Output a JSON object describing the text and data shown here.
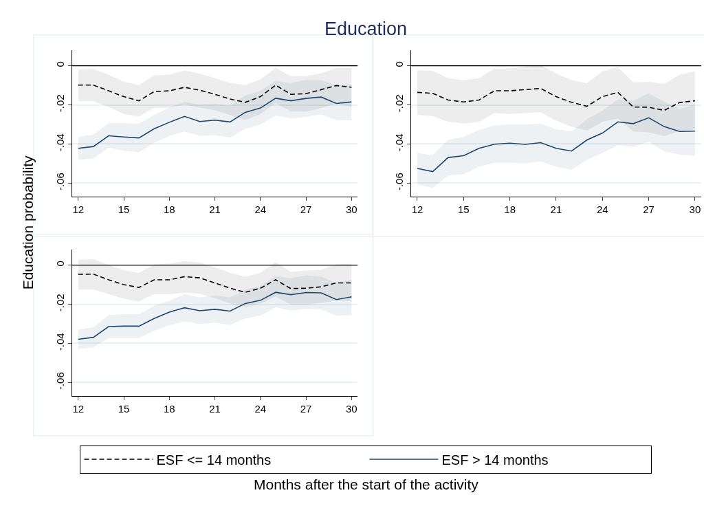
{
  "chart_data": [
    {
      "type": "line",
      "title": "Education",
      "ylabel": "Education probability",
      "xlabel": "Months after the start of the activity",
      "legend": "bottom",
      "grid": "y",
      "x": [
        12,
        13,
        14,
        15,
        16,
        17,
        18,
        19,
        20,
        21,
        22,
        23,
        24,
        25,
        26,
        27,
        28,
        29,
        30
      ],
      "xlim": [
        11.6,
        30.4
      ],
      "xticks": [
        12,
        15,
        18,
        21,
        24,
        27,
        30
      ],
      "ylim": [
        -0.067,
        0.008
      ],
      "yticks": [
        {
          "value": 0,
          "label": "0"
        },
        {
          "value": -0.02,
          "label": "-.02"
        },
        {
          "value": -0.04,
          "label": "-.04"
        },
        {
          "value": -0.06,
          "label": "-.06"
        }
      ],
      "ref_lines": [
        {
          "axis": "y",
          "value": 0,
          "color": "#000000"
        }
      ],
      "series": [
        {
          "name": "ESF <= 14 months",
          "color": "#000000",
          "line_style": "dashed",
          "values": [
            -0.0099,
            -0.0099,
            -0.0128,
            -0.0158,
            -0.0179,
            -0.0132,
            -0.0128,
            -0.011,
            -0.0125,
            -0.0146,
            -0.017,
            -0.0187,
            -0.0158,
            -0.0099,
            -0.0146,
            -0.0143,
            -0.0122,
            -0.0101,
            -0.011
          ],
          "upper": [
            -0.0019,
            -0.0016,
            -0.0046,
            -0.0081,
            -0.0099,
            -0.0049,
            -0.0046,
            -0.0024,
            -0.004,
            -0.0064,
            -0.0087,
            -0.0099,
            -0.0069,
            -0.0011,
            -0.0054,
            -0.0052,
            -0.0038,
            -0.0011,
            -0.0012
          ],
          "lower": [
            -0.0181,
            -0.0181,
            -0.021,
            -0.0246,
            -0.0259,
            -0.0216,
            -0.0214,
            -0.0199,
            -0.0214,
            -0.0228,
            -0.0252,
            -0.0278,
            -0.0246,
            -0.0191,
            -0.0234,
            -0.0234,
            -0.0216,
            -0.0195,
            -0.021
          ]
        },
        {
          "name": "ESF > 14 months",
          "color": "#1a476f",
          "line_style": "solid",
          "values": [
            -0.0422,
            -0.0413,
            -0.0358,
            -0.0364,
            -0.0369,
            -0.0322,
            -0.0289,
            -0.0259,
            -0.0285,
            -0.0278,
            -0.0287,
            -0.0238,
            -0.0216,
            -0.0166,
            -0.0179,
            -0.0167,
            -0.016,
            -0.0193,
            -0.0185
          ],
          "upper": [
            -0.0364,
            -0.0352,
            -0.0293,
            -0.0293,
            -0.0296,
            -0.0252,
            -0.0214,
            -0.0184,
            -0.0199,
            -0.0195,
            -0.0205,
            -0.0152,
            -0.0128,
            -0.0078,
            -0.0087,
            -0.0073,
            -0.0073,
            -0.0099,
            -0.0093
          ],
          "lower": [
            -0.0481,
            -0.0473,
            -0.0419,
            -0.0434,
            -0.0442,
            -0.0393,
            -0.036,
            -0.0336,
            -0.0358,
            -0.0355,
            -0.0367,
            -0.0322,
            -0.0301,
            -0.0254,
            -0.0269,
            -0.0261,
            -0.0249,
            -0.0278,
            -0.0278
          ]
        }
      ]
    },
    {
      "type": "line",
      "grid": "y",
      "x": [
        12,
        13,
        14,
        15,
        16,
        17,
        18,
        19,
        20,
        21,
        22,
        23,
        24,
        25,
        26,
        27,
        28,
        29,
        30
      ],
      "xlim": [
        11.6,
        30.4
      ],
      "xticks": [
        12,
        15,
        18,
        21,
        24,
        27,
        30
      ],
      "ylim": [
        -0.067,
        0.008
      ],
      "yticks": [
        {
          "value": 0,
          "label": "0"
        },
        {
          "value": -0.02,
          "label": "-.02"
        },
        {
          "value": -0.04,
          "label": "-.04"
        },
        {
          "value": -0.06,
          "label": "-.06"
        }
      ],
      "ref_lines": [
        {
          "axis": "y",
          "value": 0,
          "color": "#000000"
        }
      ],
      "series": [
        {
          "color": "#000000",
          "line_style": "dashed",
          "values": [
            -0.0136,
            -0.0141,
            -0.0175,
            -0.0185,
            -0.0175,
            -0.0128,
            -0.0128,
            -0.0122,
            -0.0116,
            -0.0158,
            -0.0187,
            -0.0207,
            -0.0158,
            -0.0136,
            -0.0211,
            -0.0212,
            -0.0228,
            -0.0188,
            -0.0179
          ],
          "upper": [
            -0.0022,
            -0.0026,
            -0.0064,
            -0.0073,
            -0.0064,
            -0.0014,
            -0.0014,
            -0.0005,
            0.0005,
            -0.004,
            -0.0073,
            -0.0089,
            -0.0028,
            -0.0007,
            -0.0085,
            -0.0082,
            -0.0093,
            -0.0046,
            -0.0028
          ],
          "lower": [
            -0.0252,
            -0.0258,
            -0.0287,
            -0.0296,
            -0.0287,
            -0.0242,
            -0.0246,
            -0.0242,
            -0.0238,
            -0.0281,
            -0.0311,
            -0.0332,
            -0.0287,
            -0.0269,
            -0.0336,
            -0.034,
            -0.036,
            -0.0334,
            -0.0328
          ]
        },
        {
          "color": "#1a476f",
          "line_style": "solid",
          "values": [
            -0.0525,
            -0.0541,
            -0.0469,
            -0.046,
            -0.0422,
            -0.0401,
            -0.0396,
            -0.0402,
            -0.0393,
            -0.0422,
            -0.0436,
            -0.0379,
            -0.0344,
            -0.0287,
            -0.0296,
            -0.0266,
            -0.0311,
            -0.0336,
            -0.0334
          ],
          "upper": [
            -0.0445,
            -0.0458,
            -0.0379,
            -0.0364,
            -0.0328,
            -0.0305,
            -0.0299,
            -0.0301,
            -0.0296,
            -0.0325,
            -0.0336,
            -0.0273,
            -0.0231,
            -0.0172,
            -0.0179,
            -0.0141,
            -0.0184,
            -0.0222,
            -0.0199
          ],
          "lower": [
            -0.0607,
            -0.0624,
            -0.0561,
            -0.0555,
            -0.0516,
            -0.0496,
            -0.0495,
            -0.0499,
            -0.0489,
            -0.0516,
            -0.0532,
            -0.0481,
            -0.0446,
            -0.0405,
            -0.0414,
            -0.0389,
            -0.0438,
            -0.0454,
            -0.0461
          ]
        }
      ]
    },
    {
      "type": "line",
      "grid": "y",
      "x": [
        12,
        13,
        14,
        15,
        16,
        17,
        18,
        19,
        20,
        21,
        22,
        23,
        24,
        25,
        26,
        27,
        28,
        29,
        30
      ],
      "xlim": [
        11.6,
        30.4
      ],
      "xticks": [
        12,
        15,
        18,
        21,
        24,
        27,
        30
      ],
      "ylim": [
        -0.067,
        0.008
      ],
      "yticks": [
        {
          "value": 0,
          "label": "0"
        },
        {
          "value": -0.02,
          "label": "-.02"
        },
        {
          "value": -0.04,
          "label": "-.04"
        },
        {
          "value": -0.06,
          "label": "-.06"
        }
      ],
      "ref_lines": [
        {
          "axis": "y",
          "value": 0,
          "color": "#000000"
        }
      ],
      "series": [
        {
          "color": "#000000",
          "line_style": "dashed",
          "values": [
            -0.0047,
            -0.0046,
            -0.0075,
            -0.01,
            -0.0114,
            -0.0075,
            -0.0075,
            -0.0059,
            -0.0065,
            -0.0091,
            -0.0118,
            -0.0139,
            -0.0118,
            -0.0075,
            -0.012,
            -0.0118,
            -0.0111,
            -0.0091,
            -0.0091
          ],
          "upper": [
            0.0027,
            0.0031,
            0,
            -0.0026,
            -0.004,
            0.0004,
            0.0007,
            0.0021,
            0.0013,
            -0.0012,
            -0.0038,
            -0.0059,
            -0.0038,
            0.0015,
            -0.0035,
            -0.0028,
            -0.0024,
            0.0005,
            0.0007
          ],
          "lower": [
            -0.0124,
            -0.0124,
            -0.0149,
            -0.0172,
            -0.0186,
            -0.0149,
            -0.0149,
            -0.0141,
            -0.0146,
            -0.0169,
            -0.0196,
            -0.0214,
            -0.0196,
            -0.016,
            -0.0202,
            -0.0202,
            -0.0193,
            -0.0181,
            -0.0185
          ]
        },
        {
          "color": "#1a476f",
          "line_style": "solid",
          "values": [
            -0.0379,
            -0.0369,
            -0.0314,
            -0.0312,
            -0.0312,
            -0.0273,
            -0.024,
            -0.0218,
            -0.0233,
            -0.0226,
            -0.0235,
            -0.0196,
            -0.018,
            -0.0139,
            -0.0151,
            -0.014,
            -0.0142,
            -0.0176,
            -0.0162
          ],
          "upper": [
            -0.0329,
            -0.0318,
            -0.0255,
            -0.0252,
            -0.0252,
            -0.0208,
            -0.0181,
            -0.0149,
            -0.0165,
            -0.0155,
            -0.0165,
            -0.0126,
            -0.0108,
            -0.0055,
            -0.0067,
            -0.0052,
            -0.0059,
            -0.0091,
            -0.0075
          ],
          "lower": [
            -0.0428,
            -0.042,
            -0.0373,
            -0.0373,
            -0.0373,
            -0.0335,
            -0.0308,
            -0.0287,
            -0.0302,
            -0.0294,
            -0.0306,
            -0.0273,
            -0.0259,
            -0.0216,
            -0.0232,
            -0.0224,
            -0.0226,
            -0.0259,
            -0.0255
          ]
        }
      ]
    }
  ]
}
